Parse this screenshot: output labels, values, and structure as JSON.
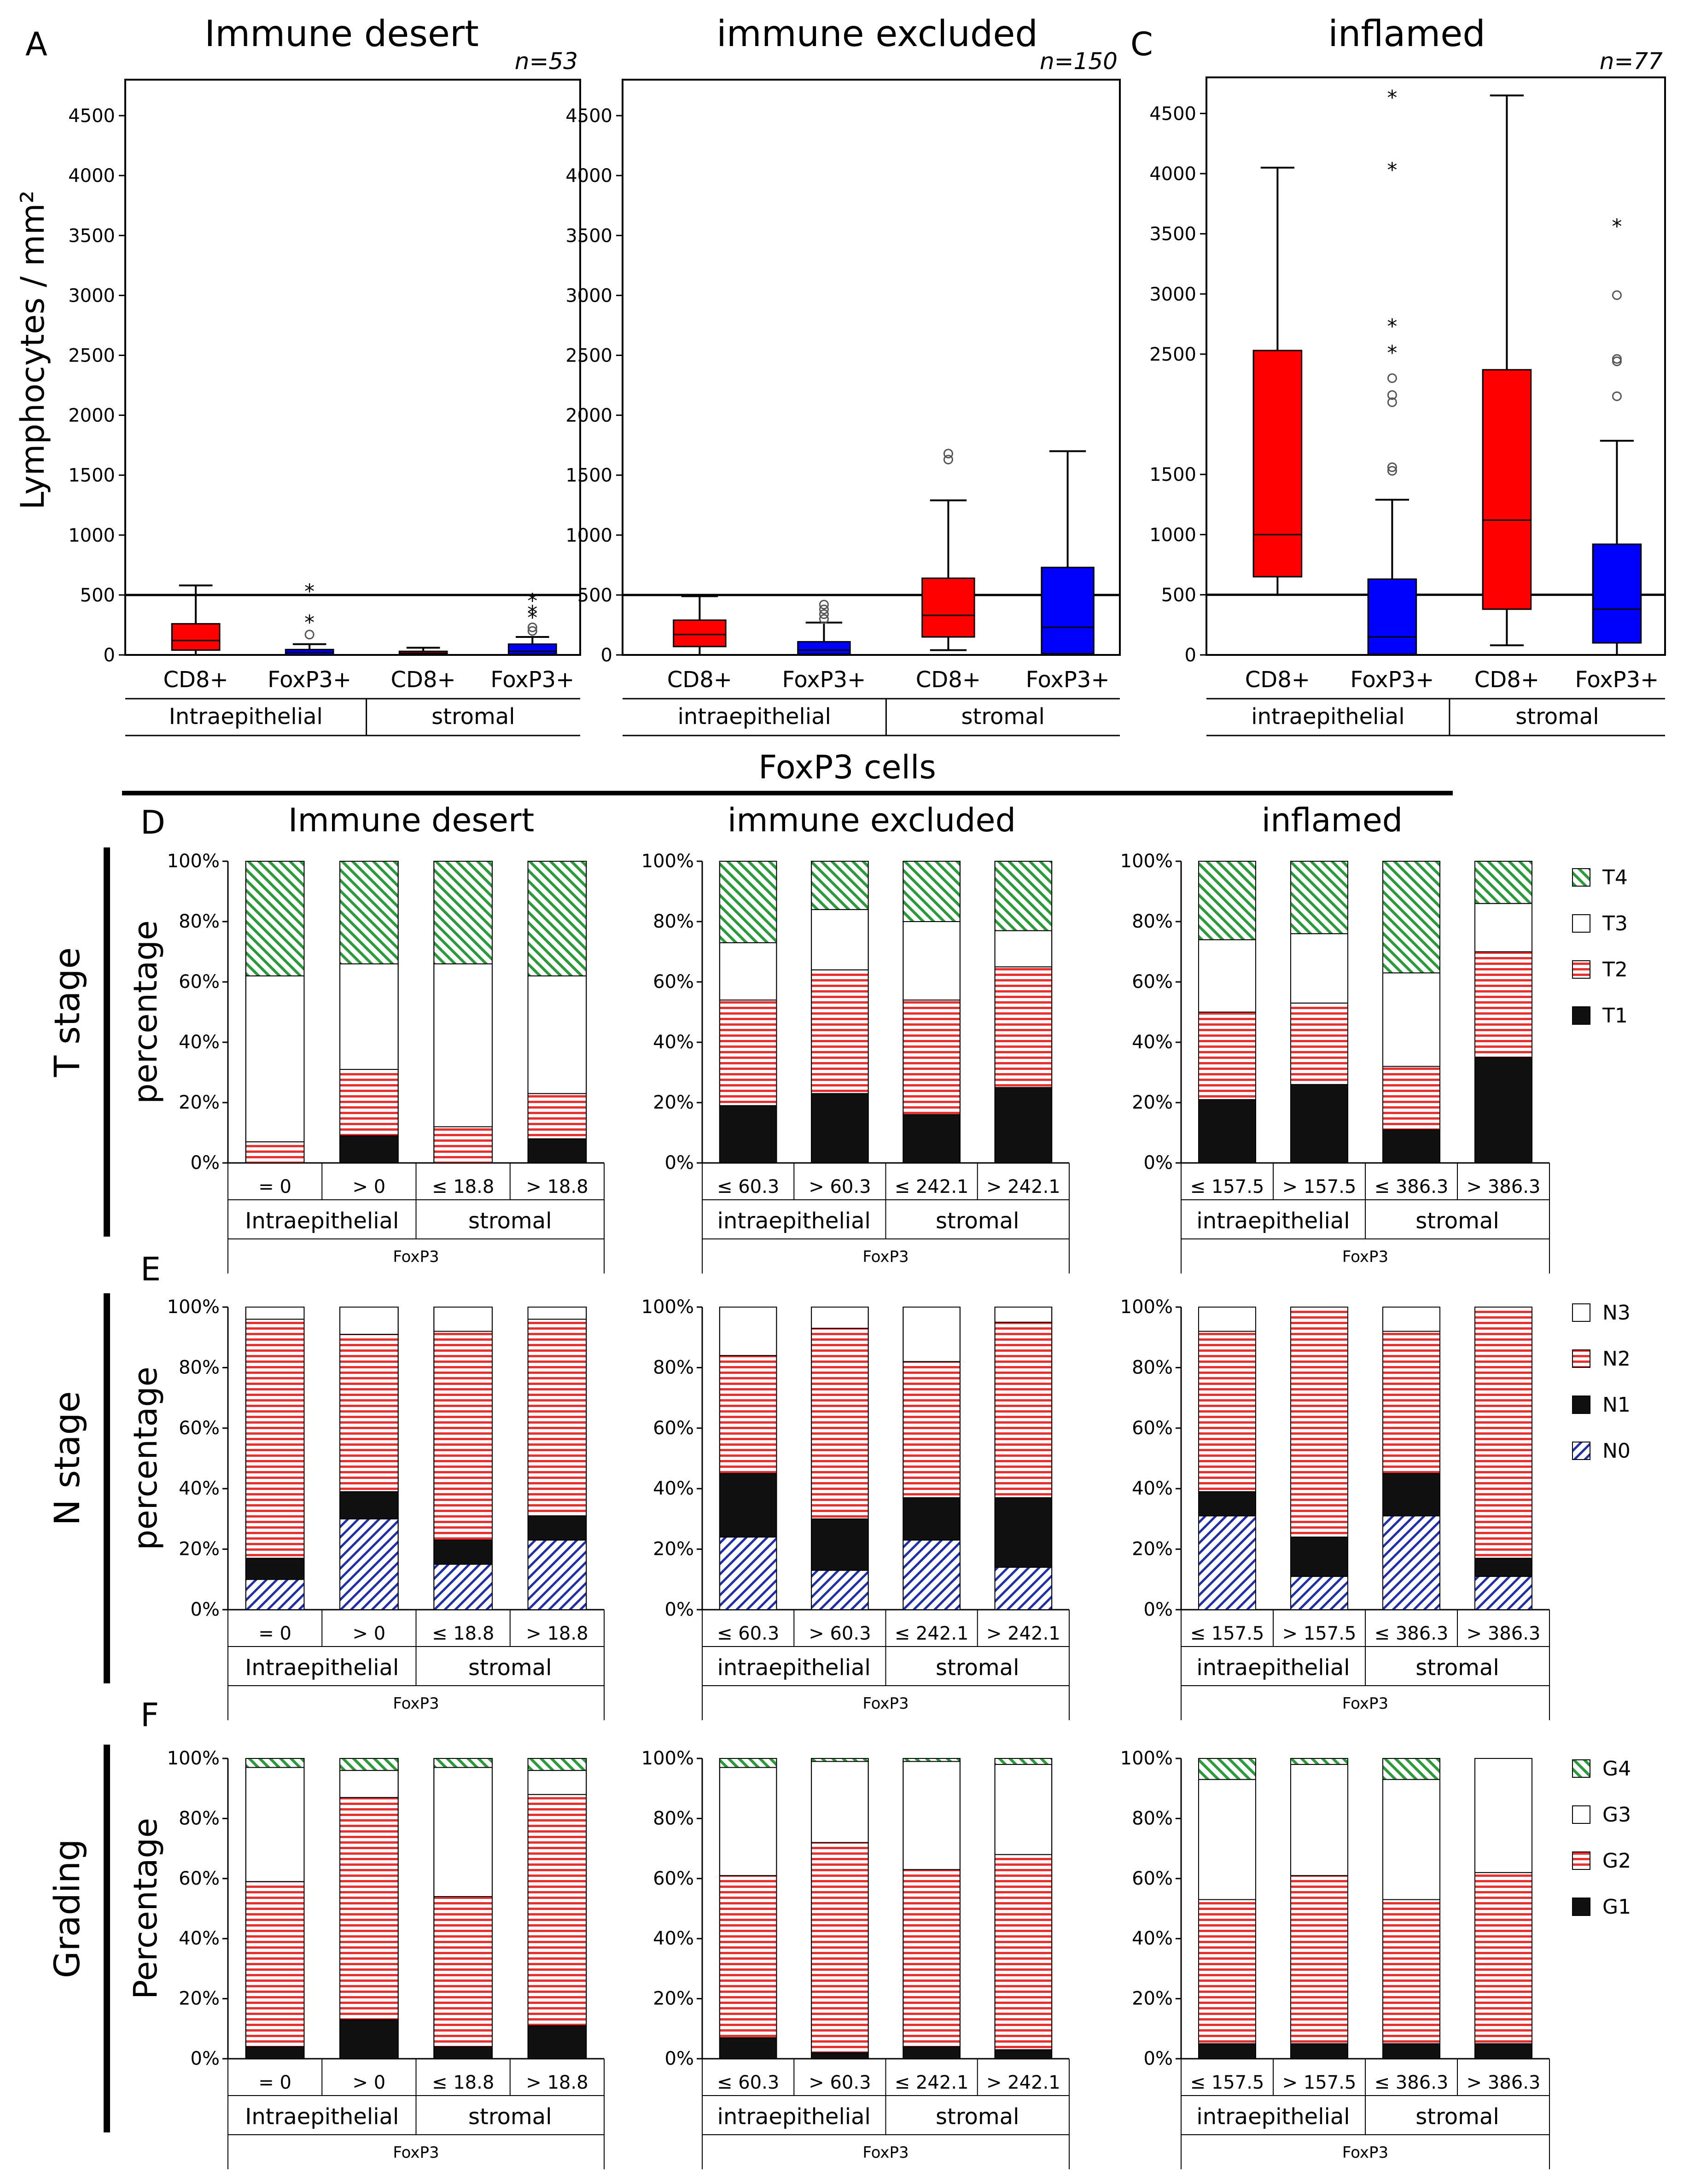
{
  "top_labels": {
    "panel_a": "A",
    "panel_c": "C",
    "foxp3_cells": "FoxP3 cells",
    "ylabel": "Lymphocytes / mm²"
  },
  "colors": {
    "red": "#ff0000",
    "blue": "#0000ff",
    "black": "#111111",
    "hatch_red": "#e8312f",
    "hatch_green": "#2a9a3a",
    "hatch_blue": "#1f2fa8"
  },
  "box_panels": [
    {
      "title": "Immune desert",
      "n": "n=53",
      "group_labels": [
        "Intraepithelial",
        "stromal"
      ],
      "yticks": [
        "4500",
        "4000",
        "3500",
        "3000",
        "2500",
        "2000",
        "1500",
        "1000",
        "500",
        "0"
      ],
      "boxes": [
        {
          "label": "CD8+",
          "color": "red",
          "whisker_low": 0,
          "q1": 40,
          "median": 120,
          "q3": 260,
          "whisker_high": 580,
          "outliers": []
        },
        {
          "label": "FoxP3+",
          "color": "blue",
          "whisker_low": 0,
          "q1": 0,
          "median": 20,
          "q3": 45,
          "whisker_high": 90,
          "outliers": [
            {
              "v": 170,
              "s": "o"
            },
            {
              "v": 290,
              "s": "*"
            },
            {
              "v": 550,
              "s": "*"
            }
          ]
        },
        {
          "label": "CD8+",
          "color": "red",
          "whisker_low": 0,
          "q1": 5,
          "median": 15,
          "q3": 30,
          "whisker_high": 60,
          "outliers": []
        },
        {
          "label": "FoxP3+",
          "color": "blue",
          "whisker_low": 0,
          "q1": 5,
          "median": 30,
          "q3": 90,
          "whisker_high": 150,
          "outliers": [
            {
              "v": 200,
              "s": "o"
            },
            {
              "v": 230,
              "s": "o"
            },
            {
              "v": 330,
              "s": "*"
            },
            {
              "v": 370,
              "s": "*"
            },
            {
              "v": 470,
              "s": "*"
            }
          ]
        }
      ],
      "threshold": 500,
      "ymax": 4800,
      "ytop": 4500
    },
    {
      "title": "immune excluded",
      "n": "n=150",
      "group_labels": [
        "intraepithelial",
        "stromal"
      ],
      "yticks": [
        "4500",
        "4000",
        "3500",
        "3000",
        "2500",
        "2000",
        "1500",
        "1000",
        "500",
        "0"
      ],
      "boxes": [
        {
          "label": "CD8+",
          "color": "red",
          "whisker_low": 0,
          "q1": 70,
          "median": 170,
          "q3": 290,
          "whisker_high": 490,
          "outliers": []
        },
        {
          "label": "FoxP3+",
          "color": "blue",
          "whisker_low": 0,
          "q1": 5,
          "median": 40,
          "q3": 110,
          "whisker_high": 270,
          "outliers": [
            {
              "v": 300,
              "s": "o"
            },
            {
              "v": 340,
              "s": "o"
            },
            {
              "v": 380,
              "s": "o"
            },
            {
              "v": 420,
              "s": "o"
            }
          ]
        },
        {
          "label": "CD8+",
          "color": "red",
          "whisker_low": 40,
          "q1": 150,
          "median": 330,
          "q3": 640,
          "whisker_high": 1290,
          "outliers": [
            {
              "v": 1630,
              "s": "o"
            },
            {
              "v": 1680,
              "s": "o"
            }
          ]
        },
        {
          "label": "FoxP3+",
          "color": "blue",
          "whisker_low": 0,
          "q1": 10,
          "median": 230,
          "q3": 730,
          "whisker_high": 1700,
          "outliers": []
        }
      ],
      "threshold": 500,
      "ymax": 4800,
      "ytop": 4500
    },
    {
      "title": "inflamed",
      "n": "n=77",
      "group_labels": [
        "intraepithelial",
        "stromal"
      ],
      "yticks": [
        "4500",
        "4000",
        "3500",
        "3000",
        "2500",
        "1500",
        "1000",
        "500",
        "0"
      ],
      "boxes": [
        {
          "label": "CD8+",
          "color": "red",
          "whisker_low": 500,
          "q1": 650,
          "median": 1000,
          "q3": 2530,
          "whisker_high": 4050,
          "outliers": []
        },
        {
          "label": "FoxP3+",
          "color": "blue",
          "whisker_low": 0,
          "q1": 5,
          "median": 150,
          "q3": 630,
          "whisker_high": 1290,
          "outliers": [
            {
              "v": 1530,
              "s": "o"
            },
            {
              "v": 1560,
              "s": "o"
            },
            {
              "v": 2100,
              "s": "o"
            },
            {
              "v": 2160,
              "s": "o"
            },
            {
              "v": 2300,
              "s": "o"
            },
            {
              "v": 2530,
              "s": "*"
            },
            {
              "v": 2750,
              "s": "*"
            },
            {
              "v": 4050,
              "s": "*"
            },
            {
              "v": 4650,
              "s": "*"
            }
          ]
        },
        {
          "label": "CD8+",
          "color": "red",
          "whisker_low": 80,
          "q1": 380,
          "median": 1120,
          "q3": 2370,
          "whisker_high": 4650,
          "outliers": []
        },
        {
          "label": "FoxP3+",
          "color": "blue",
          "whisker_low": 0,
          "q1": 100,
          "median": 380,
          "q3": 920,
          "whisker_high": 1780,
          "outliers": [
            {
              "v": 2150,
              "s": "o"
            },
            {
              "v": 2440,
              "s": "o"
            },
            {
              "v": 2460,
              "s": "o"
            },
            {
              "v": 2990,
              "s": "o"
            },
            {
              "v": 3580,
              "s": "*"
            }
          ]
        }
      ],
      "threshold": 500,
      "ymax": 4800,
      "ytop": 4500
    }
  ],
  "stack_rows": [
    {
      "panel": "D",
      "row_title": "T stage",
      "ylabel": "percentage",
      "legend": [
        {
          "label": "T4",
          "fill": "green"
        },
        {
          "label": "T3",
          "fill": "white"
        },
        {
          "label": "T2",
          "fill": "red"
        },
        {
          "label": "T1",
          "fill": "black"
        }
      ],
      "col_titles": [
        "Immune desert",
        "immune excluded",
        "inflamed"
      ],
      "charts": [
        {
          "cats": [
            "= 0",
            "> 0",
            "≤ 18.8",
            "> 18.8"
          ],
          "groups": [
            "Intraepithelial",
            "stromal"
          ],
          "foot": "FoxP3",
          "stacks": [
            [
              0,
              7,
              55,
              38
            ],
            [
              9,
              22,
              35,
              34
            ],
            [
              0,
              12,
              54,
              34
            ],
            [
              8,
              15,
              39,
              38
            ]
          ]
        },
        {
          "cats": [
            "≤ 60.3",
            "> 60.3",
            "≤ 242.1",
            "> 242.1"
          ],
          "groups": [
            "intraepithelial",
            "stromal"
          ],
          "foot": "FoxP3",
          "stacks": [
            [
              19,
              35,
              19,
              27
            ],
            [
              23,
              41,
              20,
              16
            ],
            [
              16,
              38,
              26,
              20
            ],
            [
              25,
              40,
              12,
              23
            ]
          ]
        },
        {
          "cats": [
            "≤ 157.5",
            "> 157.5",
            "≤ 386.3",
            "> 386.3"
          ],
          "groups": [
            "intraepithelial",
            "stromal"
          ],
          "foot": "FoxP3",
          "stacks": [
            [
              21,
              29,
              24,
              26
            ],
            [
              26,
              27,
              23,
              24
            ],
            [
              11,
              21,
              31,
              37
            ],
            [
              35,
              35,
              16,
              14
            ]
          ]
        }
      ]
    },
    {
      "panel": "E",
      "row_title": "N stage",
      "ylabel": "percentage",
      "legend": [
        {
          "label": "N3",
          "fill": "white"
        },
        {
          "label": "N2",
          "fill": "red"
        },
        {
          "label": "N1",
          "fill": "black"
        },
        {
          "label": "N0",
          "fill": "blue"
        }
      ],
      "col_titles": [],
      "charts": [
        {
          "cats": [
            "= 0",
            "> 0",
            "≤ 18.8",
            "> 18.8"
          ],
          "groups": [
            "Intraepithelial",
            "stromal"
          ],
          "foot": "FoxP3",
          "stacks": [
            [
              10,
              7,
              79,
              4
            ],
            [
              30,
              9,
              52,
              9
            ],
            [
              15,
              8,
              69,
              8
            ],
            [
              23,
              8,
              65,
              4
            ]
          ]
        },
        {
          "cats": [
            "≤ 60.3",
            "> 60.3",
            "≤ 242.1",
            "> 242.1"
          ],
          "groups": [
            "intraepithelial",
            "stromal"
          ],
          "foot": "FoxP3",
          "stacks": [
            [
              24,
              21,
              39,
              16
            ],
            [
              13,
              17,
              63,
              7
            ],
            [
              23,
              14,
              45,
              18
            ],
            [
              14,
              23,
              58,
              5
            ]
          ]
        },
        {
          "cats": [
            "≤ 157.5",
            "> 157.5",
            "≤ 386.3",
            "> 386.3"
          ],
          "groups": [
            "intraepithelial",
            "stromal"
          ],
          "foot": "FoxP3",
          "stacks": [
            [
              31,
              8,
              53,
              8
            ],
            [
              11,
              13,
              76,
              0
            ],
            [
              31,
              14,
              47,
              8
            ],
            [
              11,
              6,
              83,
              0
            ]
          ]
        }
      ]
    },
    {
      "panel": "F",
      "row_title": "Grading",
      "ylabel": "Percentage",
      "legend": [
        {
          "label": "G4",
          "fill": "green"
        },
        {
          "label": "G3",
          "fill": "white"
        },
        {
          "label": "G2",
          "fill": "red"
        },
        {
          "label": "G1",
          "fill": "black"
        }
      ],
      "col_titles": [],
      "charts": [
        {
          "cats": [
            "= 0",
            "> 0",
            "≤ 18.8",
            "> 18.8"
          ],
          "groups": [
            "Intraepithelial",
            "stromal"
          ],
          "foot": "FoxP3",
          "stacks": [
            [
              4,
              55,
              38,
              3
            ],
            [
              13,
              74,
              9,
              4
            ],
            [
              4,
              50,
              43,
              3
            ],
            [
              11,
              77,
              8,
              4
            ]
          ]
        },
        {
          "cats": [
            "≤ 60.3",
            "> 60.3",
            "≤ 242.1",
            "> 242.1"
          ],
          "groups": [
            "intraepithelial",
            "stromal"
          ],
          "foot": "FoxP3",
          "stacks": [
            [
              7,
              54,
              36,
              3
            ],
            [
              2,
              70,
              27,
              1
            ],
            [
              4,
              59,
              36,
              1
            ],
            [
              3,
              65,
              30,
              2
            ]
          ]
        },
        {
          "cats": [
            "≤ 157.5",
            "> 157.5",
            "≤ 386.3",
            "> 386.3"
          ],
          "groups": [
            "intraepithelial",
            "stromal"
          ],
          "foot": "FoxP3",
          "stacks": [
            [
              5,
              48,
              40,
              7
            ],
            [
              5,
              56,
              37,
              2
            ],
            [
              5,
              48,
              40,
              7
            ],
            [
              5,
              57,
              38,
              0
            ]
          ]
        }
      ]
    }
  ],
  "pct_ticks": [
    "100%",
    "80%",
    "60%",
    "40%",
    "20%",
    "0%"
  ],
  "chart_data": [
    {
      "type": "box",
      "title": "Immune desert",
      "n": "n=53",
      "ylabel": "Lymphocytes / mm²",
      "categories": [
        "Intraepithelial CD8+",
        "Intraepithelial FoxP3+",
        "stromal CD8+",
        "stromal FoxP3+"
      ],
      "threshold": 500
    },
    {
      "type": "box",
      "title": "immune excluded",
      "n": "n=150",
      "categories": [
        "intraepithelial CD8+",
        "intraepithelial FoxP3+",
        "stromal CD8+",
        "stromal FoxP3+"
      ],
      "threshold": 500
    },
    {
      "type": "box",
      "title": "inflamed",
      "n": "n=77",
      "categories": [
        "intraepithelial CD8+",
        "intraepithelial FoxP3+",
        "stromal CD8+",
        "stromal FoxP3+"
      ],
      "threshold": 500
    },
    {
      "type": "bar",
      "stacked": true,
      "row": "T stage",
      "series": [
        "T1",
        "T2",
        "T3",
        "T4"
      ]
    },
    {
      "type": "bar",
      "stacked": true,
      "row": "N stage",
      "series": [
        "N0",
        "N1",
        "N2",
        "N3"
      ]
    },
    {
      "type": "bar",
      "stacked": true,
      "row": "Grading",
      "series": [
        "G1",
        "G2",
        "G3",
        "G4"
      ]
    }
  ]
}
